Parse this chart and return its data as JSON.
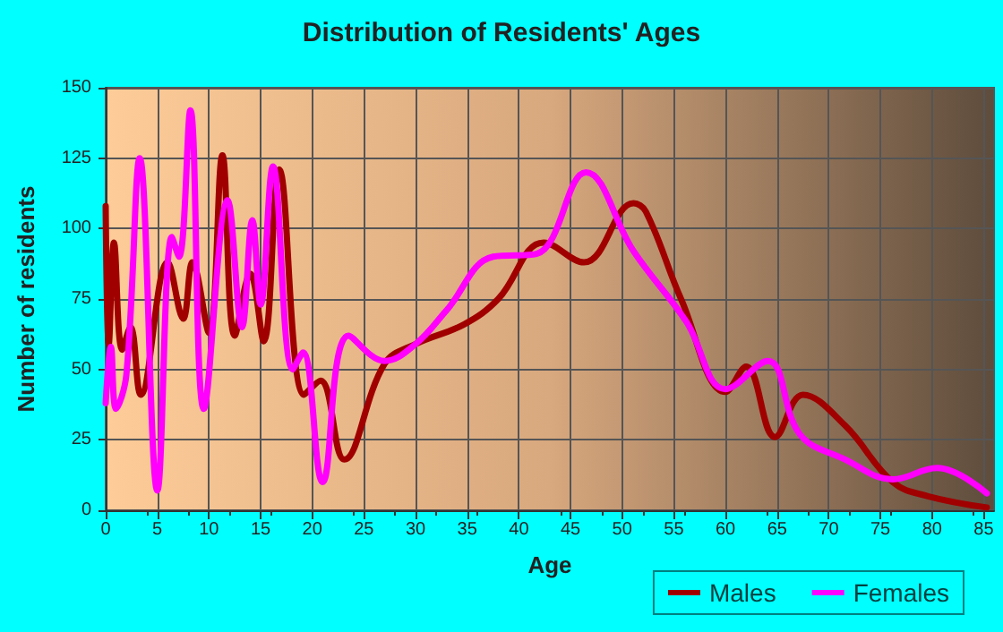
{
  "chart_data": {
    "type": "line",
    "title": "Distribution of Residents' Ages",
    "xlabel": "Age",
    "ylabel": "Number of residents",
    "xlim": [
      0,
      86
    ],
    "xticks": [
      0,
      5,
      10,
      15,
      20,
      25,
      30,
      35,
      40,
      45,
      50,
      55,
      60,
      65,
      70,
      75,
      80,
      85
    ],
    "ylim": [
      0,
      150
    ],
    "yticks": [
      0,
      25,
      50,
      75,
      100,
      125,
      150
    ],
    "grid": true,
    "legend": "bottom right",
    "marker": "none",
    "line_style": "solid",
    "series": [
      {
        "name": "Males",
        "color": "#a00000",
        "x": [
          0,
          0.3,
          0.8,
          1.6,
          2.4,
          3.4,
          6,
          7.5,
          8.4,
          10,
          11.3,
          12.5,
          14,
          15.3,
          16.8,
          19.2,
          20.8,
          23.1,
          27,
          30,
          34.7,
          38,
          42.4,
          46.3,
          51.1,
          52.3,
          55.7,
          60,
          62,
          64.8,
          67.5,
          71.6,
          76.2,
          79.6,
          85.3
        ],
        "values": [
          108,
          59,
          95,
          57,
          65,
          41,
          88,
          68,
          88,
          63,
          126,
          62,
          84,
          60,
          121,
          41,
          46,
          18,
          52,
          59,
          66,
          75,
          95,
          88,
          109,
          106,
          75,
          42,
          51,
          26,
          41,
          30,
          10,
          5,
          1
        ]
      },
      {
        "name": "Females",
        "color": "#ff00ff",
        "x": [
          0,
          0.5,
          1,
          2,
          3.3,
          5,
          6.4,
          7.1,
          8.2,
          9.5,
          11.8,
          13.2,
          14.2,
          15,
          16.2,
          18.1,
          19.1,
          21,
          23.5,
          27,
          30,
          33,
          37.5,
          41.7,
          46.5,
          51.1,
          56.2,
          60,
          64.1,
          67.2,
          71.6,
          76.2,
          80.5,
          85.3
        ],
        "values": [
          38,
          58,
          36,
          48,
          125,
          7,
          97,
          90,
          142,
          36,
          110,
          65,
          103,
          73,
          122,
          50,
          56,
          10,
          62,
          53,
          59,
          71,
          90,
          91,
          120,
          92,
          67,
          43,
          53,
          27,
          18,
          11,
          15,
          6
        ]
      }
    ]
  }
}
